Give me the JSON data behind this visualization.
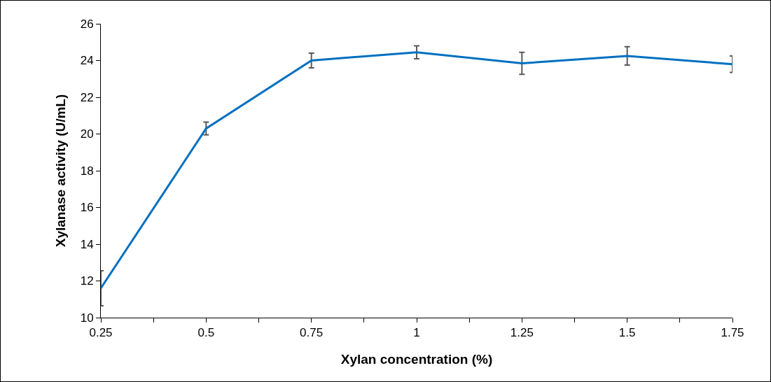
{
  "chart_data": {
    "type": "line",
    "xlabel": "Xylan concentration (%)",
    "ylabel": "Xylanase activity (U/mL)",
    "x": [
      0.25,
      0.5,
      0.75,
      1,
      1.25,
      1.5,
      1.75
    ],
    "series": [
      {
        "color": "#0070c0",
        "values": [
          11.6,
          20.3,
          24.0,
          24.45,
          23.85,
          24.25,
          23.8
        ],
        "errors": [
          0.95,
          0.35,
          0.4,
          0.35,
          0.6,
          0.5,
          0.45
        ]
      }
    ],
    "xlim": [
      0.25,
      1.75
    ],
    "xticks": [
      0.25,
      {
        "value": 0.375,
        "label": null
      },
      0.5,
      {
        "value": 0.625,
        "label": null
      },
      0.75,
      {
        "value": 0.875,
        "label": null
      },
      1,
      {
        "value": 1.125,
        "label": null
      },
      1.25,
      {
        "value": 1.375,
        "label": null
      },
      1.5,
      {
        "value": 1.625,
        "label": null
      },
      1.75
    ],
    "ylim": [
      10,
      26
    ],
    "yticks": [
      10,
      12,
      14,
      16,
      18,
      20,
      22,
      24,
      26
    ],
    "grid": false,
    "marker": "none",
    "line_style": "solid"
  }
}
